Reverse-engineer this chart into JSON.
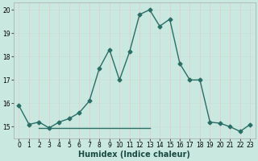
{
  "xlabel": "Humidex (Indice chaleur)",
  "line1_x": [
    0,
    1,
    2,
    3,
    4,
    5,
    6,
    7,
    8,
    9,
    10,
    11,
    12,
    13,
    14,
    15,
    16,
    17,
    18,
    19,
    20,
    21,
    22,
    23
  ],
  "line1_y": [
    15.9,
    15.1,
    15.2,
    14.95,
    15.2,
    15.35,
    15.6,
    16.1,
    17.5,
    18.3,
    17.0,
    18.2,
    19.8,
    20.0,
    19.3,
    19.6,
    17.7,
    17.0,
    17.0,
    15.2,
    15.15,
    15.0,
    14.8,
    15.1
  ],
  "line2_x": [
    2,
    13
  ],
  "line2_y": [
    14.95,
    14.95
  ],
  "line_color": "#2a6e65",
  "bg_color": "#c8e8e0",
  "grid_color_v": "#e8c8c8",
  "grid_color_h": "#c8e0d8",
  "ylim": [
    14.5,
    20.3
  ],
  "xlim": [
    -0.5,
    23.5
  ],
  "yticks": [
    15,
    16,
    17,
    18,
    19,
    20
  ],
  "xticks": [
    0,
    1,
    2,
    3,
    4,
    5,
    6,
    7,
    8,
    9,
    10,
    11,
    12,
    13,
    14,
    15,
    16,
    17,
    18,
    19,
    20,
    21,
    22,
    23
  ],
  "marker": "D",
  "marker_size": 2.5,
  "line_width": 1.0,
  "xlabel_fontsize": 7,
  "tick_fontsize": 5.5
}
